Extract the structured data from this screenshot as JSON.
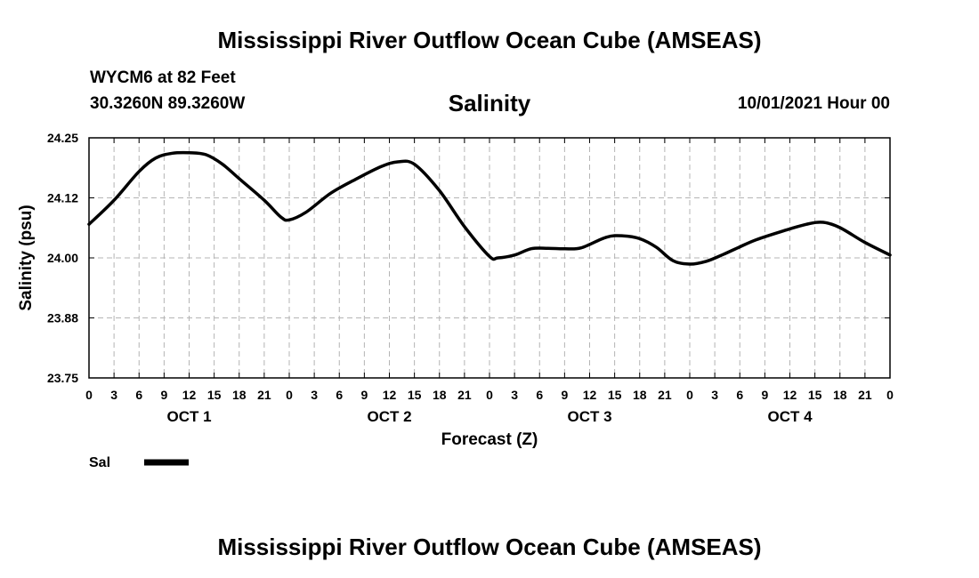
{
  "header": {
    "title": "Mississippi River Outflow Ocean Cube (AMSEAS)",
    "station": "WYCM6 at 82 Feet",
    "coords": "30.3260N  89.3260W",
    "variable": "Salinity",
    "run_time": "10/01/2021 Hour 00"
  },
  "footer": {
    "title": "Mississippi River Outflow Ocean Cube (AMSEAS)"
  },
  "chart_data": {
    "type": "line",
    "title": "Salinity",
    "xlabel": "Forecast (Z)",
    "ylabel": "Salinity (psu)",
    "ylim": [
      23.75,
      24.25
    ],
    "yticks": [
      "24.25",
      "24.12",
      "24.00",
      "23.88",
      "23.75"
    ],
    "ytick_values": [
      24.25,
      24.125,
      24.0,
      23.875,
      23.75
    ],
    "xlim": [
      0,
      96
    ],
    "xtick_labels": [
      "0",
      "3",
      "6",
      "9",
      "12",
      "15",
      "18",
      "21",
      "0",
      "3",
      "6",
      "9",
      "12",
      "15",
      "18",
      "21",
      "0",
      "3",
      "6",
      "9",
      "12",
      "15",
      "18",
      "21",
      "0",
      "3",
      "6",
      "9",
      "12",
      "15",
      "18",
      "21",
      "0"
    ],
    "day_labels": [
      "OCT 1",
      "OCT 2",
      "OCT 3",
      "OCT 4"
    ],
    "grid": true,
    "legend": {
      "position": "bottom-left",
      "label": "Sal"
    },
    "series": [
      {
        "name": "Sal",
        "x": [
          0,
          3,
          6,
          8,
          10,
          12,
          14,
          16,
          18,
          21,
          23,
          24,
          26,
          29,
          32,
          35,
          37,
          39,
          42,
          45,
          48,
          49,
          51,
          53,
          55,
          57,
          59,
          62,
          64,
          66,
          68,
          70,
          72,
          74,
          76,
          78,
          80,
          83,
          86,
          88,
          90,
          93,
          96
        ],
        "values": [
          24.07,
          24.12,
          24.18,
          24.208,
          24.218,
          24.219,
          24.215,
          24.195,
          24.165,
          24.12,
          24.085,
          24.079,
          24.095,
          24.135,
          24.164,
          24.19,
          24.2,
          24.195,
          24.14,
          24.065,
          24.003,
          24.0,
          24.006,
          24.019,
          24.02,
          24.019,
          24.021,
          24.043,
          24.046,
          24.04,
          24.022,
          23.994,
          23.987,
          23.993,
          24.007,
          24.023,
          24.038,
          24.055,
          24.07,
          24.074,
          24.063,
          24.032,
          24.006
        ]
      }
    ]
  }
}
